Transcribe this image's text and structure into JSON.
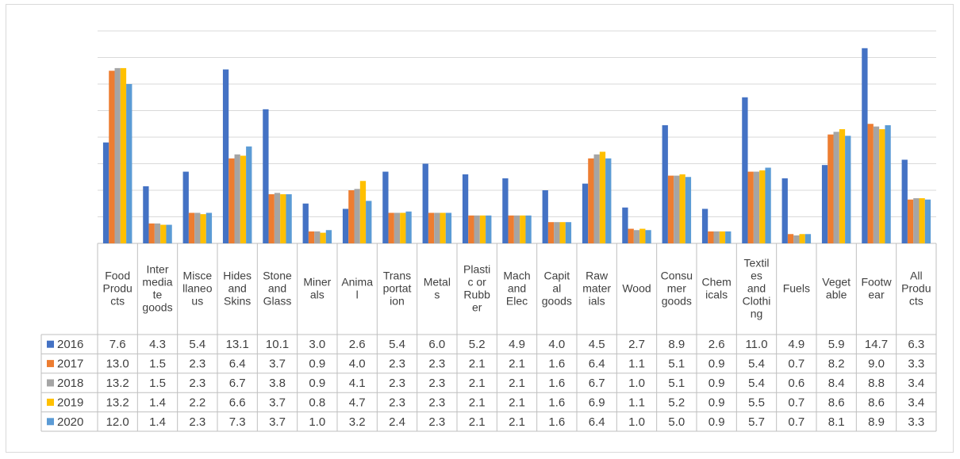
{
  "chart_data": {
    "type": "bar",
    "title": "",
    "xlabel": "",
    "ylabel": "",
    "ylim": [
      0,
      16
    ],
    "grid": true,
    "legend": "data-table",
    "categories": [
      "Food Products",
      "Intermediate goods",
      "Miscellaneous",
      "Hides and Skins",
      "Stone and Glass",
      "Minerals",
      "Animal",
      "Transportation",
      "Metals",
      "Plastic or Rubber",
      "Mach and Elec",
      "Capital goods",
      "Raw materials",
      "Wood",
      "Consumer goods",
      "Chemicals",
      "Textiles and Clothing",
      "Fuels",
      "Vegetable",
      "Footwear",
      "All Products"
    ],
    "category_label_lines": [
      [
        "Food",
        "Produ",
        "cts"
      ],
      [
        "Inter",
        "media",
        "te",
        "goods"
      ],
      [
        "Misce",
        "llaneo",
        "us"
      ],
      [
        "Hides",
        "and",
        "Skins"
      ],
      [
        "Stone",
        "and",
        "Glass"
      ],
      [
        "Miner",
        "als"
      ],
      [
        "Anima",
        "l"
      ],
      [
        "Trans",
        "portat",
        "ion"
      ],
      [
        "Metal",
        "s"
      ],
      [
        "Plasti",
        "c or",
        "Rubb",
        "er"
      ],
      [
        "Mach",
        "and",
        "Elec"
      ],
      [
        "Capit",
        "al",
        "goods"
      ],
      [
        "Raw",
        "mater",
        "ials"
      ],
      [
        "Wood"
      ],
      [
        "Consu",
        "mer",
        "goods"
      ],
      [
        "Chem",
        "icals"
      ],
      [
        "Textil",
        "es",
        "and",
        "Clothi",
        "ng"
      ],
      [
        "Fuels"
      ],
      [
        "Veget",
        "able"
      ],
      [
        "Footw",
        "ear"
      ],
      [
        "All",
        "Produ",
        "cts"
      ]
    ],
    "series": [
      {
        "name": "2016",
        "color": "#4472C4",
        "values": [
          7.6,
          4.3,
          5.4,
          13.1,
          10.1,
          3.0,
          2.6,
          5.4,
          6.0,
          5.2,
          4.9,
          4.0,
          4.5,
          2.7,
          8.9,
          2.6,
          11.0,
          4.9,
          5.9,
          14.7,
          6.3
        ]
      },
      {
        "name": "2017",
        "color": "#ED7D31",
        "values": [
          13.0,
          1.5,
          2.3,
          6.4,
          3.7,
          0.9,
          4.0,
          2.3,
          2.3,
          2.1,
          2.1,
          1.6,
          6.4,
          1.1,
          5.1,
          0.9,
          5.4,
          0.7,
          8.2,
          9.0,
          3.3
        ]
      },
      {
        "name": "2018",
        "color": "#A5A5A5",
        "values": [
          13.2,
          1.5,
          2.3,
          6.7,
          3.8,
          0.9,
          4.1,
          2.3,
          2.3,
          2.1,
          2.1,
          1.6,
          6.7,
          1.0,
          5.1,
          0.9,
          5.4,
          0.6,
          8.4,
          8.8,
          3.4
        ]
      },
      {
        "name": "2019",
        "color": "#FFC000",
        "values": [
          13.2,
          1.4,
          2.2,
          6.6,
          3.7,
          0.8,
          4.7,
          2.3,
          2.3,
          2.1,
          2.1,
          1.6,
          6.9,
          1.1,
          5.2,
          0.9,
          5.5,
          0.7,
          8.6,
          8.6,
          3.4
        ]
      },
      {
        "name": "2020",
        "color": "#5B9BD5",
        "values": [
          12.0,
          1.4,
          2.3,
          7.3,
          3.7,
          1.0,
          3.2,
          2.4,
          2.3,
          2.1,
          2.1,
          1.6,
          6.4,
          1.0,
          5.0,
          0.9,
          5.7,
          0.7,
          8.1,
          8.9,
          3.3
        ]
      }
    ]
  }
}
